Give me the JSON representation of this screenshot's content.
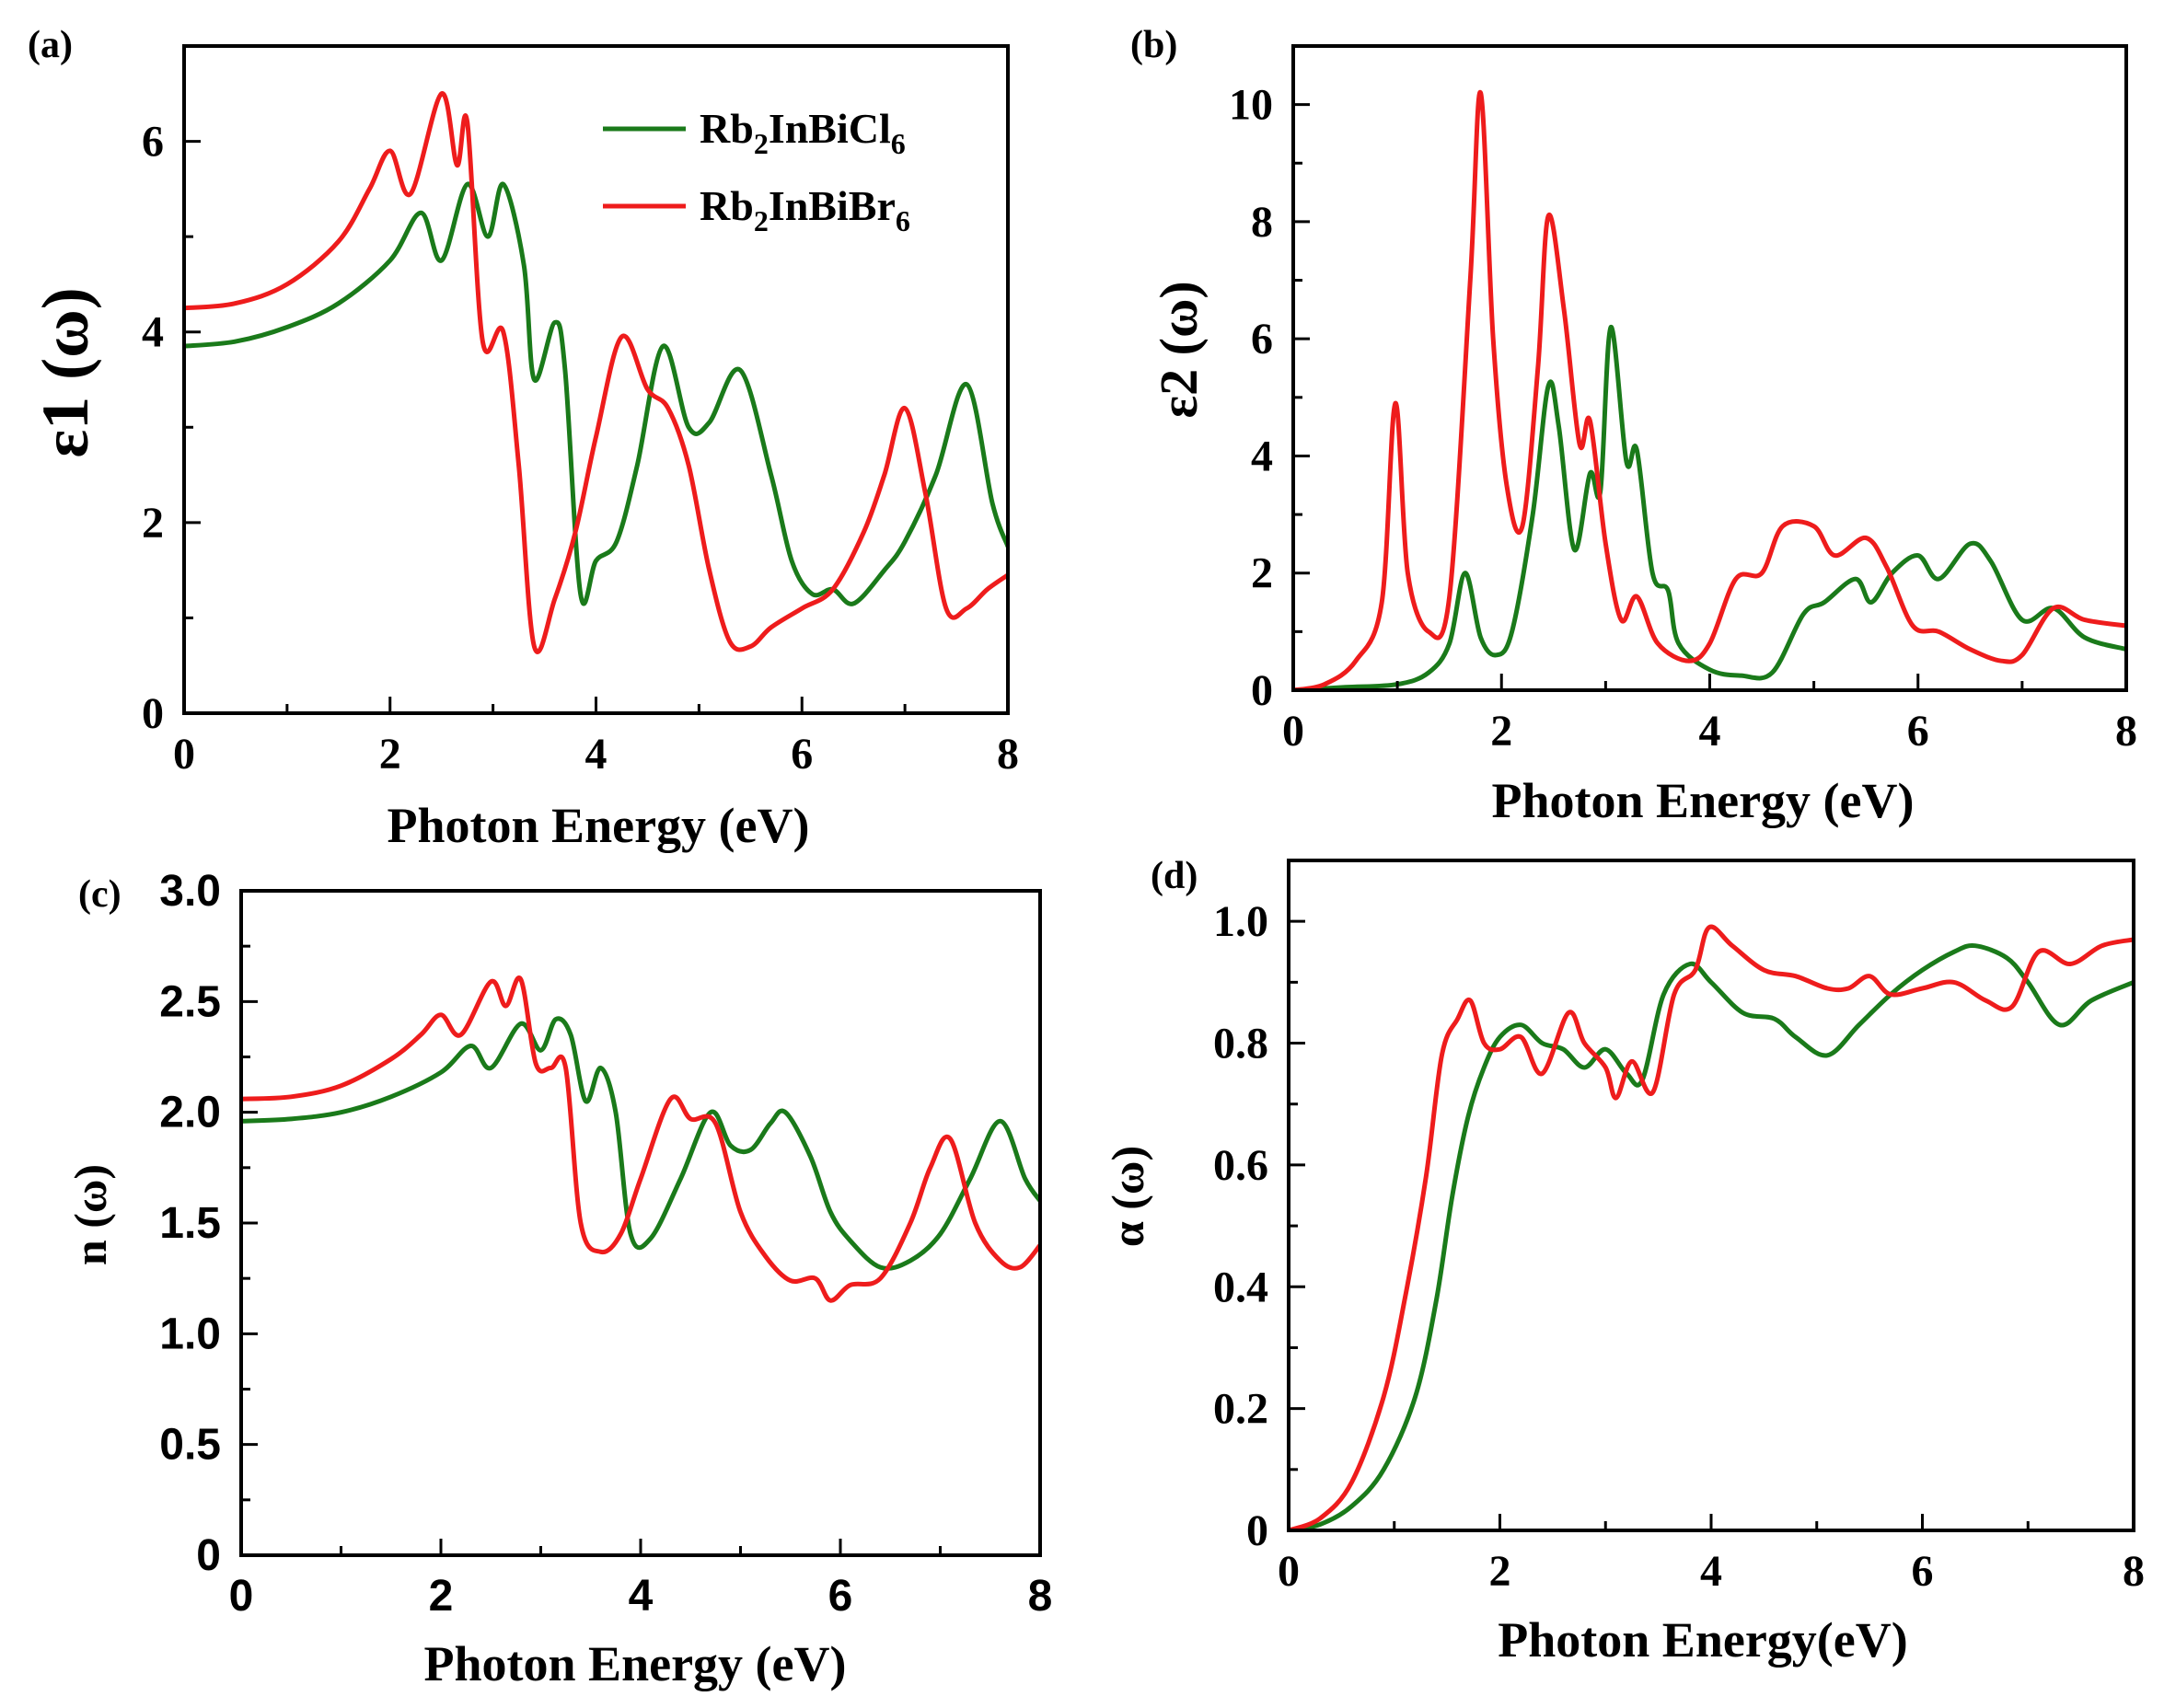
{
  "chart_data": [
    {
      "id": "a",
      "type": "line",
      "panel_label": "(a)",
      "xlabel": "Photon Energy (eV)",
      "ylabel": "ε1 (ω)",
      "xlim": [
        0,
        8
      ],
      "ylim": [
        0,
        7
      ],
      "xticks": [
        0,
        2,
        4,
        6,
        8
      ],
      "yticks": [
        0,
        2,
        4,
        6
      ],
      "legend": "top-right",
      "series": [
        {
          "name": "Rb2InBiCl6",
          "color": "#1a7a1a",
          "x": [
            0,
            0.5,
            1,
            1.5,
            2,
            2.3,
            2.5,
            2.75,
            2.95,
            3.1,
            3.3,
            3.4,
            3.6,
            3.7,
            3.85,
            4.0,
            4.2,
            4.4,
            4.65,
            4.9,
            5.1,
            5.4,
            5.7,
            5.9,
            6.1,
            6.3,
            6.5,
            6.8,
            7.0,
            7.3,
            7.6,
            7.85,
            8.0
          ],
          "y": [
            3.85,
            3.9,
            4.05,
            4.3,
            4.75,
            5.25,
            4.75,
            5.55,
            5.0,
            5.55,
            4.7,
            3.5,
            4.1,
            3.6,
            1.25,
            1.6,
            1.8,
            2.6,
            3.85,
            3.0,
            3.05,
            3.6,
            2.5,
            1.6,
            1.25,
            1.3,
            1.15,
            1.5,
            1.8,
            2.5,
            3.45,
            2.2,
            1.75
          ]
        },
        {
          "name": "Rb2InBiBr6",
          "color": "#ee1c1c",
          "x": [
            0,
            0.5,
            1,
            1.5,
            1.8,
            2.0,
            2.2,
            2.5,
            2.65,
            2.75,
            2.9,
            3.1,
            3.25,
            3.4,
            3.6,
            3.8,
            4.0,
            4.25,
            4.5,
            4.7,
            4.9,
            5.1,
            5.3,
            5.5,
            5.7,
            6.0,
            6.3,
            6.6,
            6.8,
            7.0,
            7.2,
            7.4,
            7.6,
            7.8,
            8.0
          ],
          "y": [
            4.25,
            4.3,
            4.5,
            4.95,
            5.5,
            5.9,
            5.45,
            6.5,
            5.75,
            6.2,
            3.9,
            4.0,
            2.6,
            0.7,
            1.2,
            1.9,
            2.9,
            3.95,
            3.4,
            3.2,
            2.6,
            1.5,
            0.75,
            0.7,
            0.9,
            1.1,
            1.3,
            1.9,
            2.5,
            3.2,
            2.3,
            1.1,
            1.1,
            1.3,
            1.45
          ]
        }
      ]
    },
    {
      "id": "b",
      "type": "line",
      "panel_label": "(b)",
      "xlabel": "Photon Energy (eV)",
      "ylabel": "ε2 (ω)",
      "xlim": [
        0,
        8
      ],
      "ylim": [
        0,
        11
      ],
      "xticks": [
        0,
        2,
        4,
        6,
        8
      ],
      "yticks": [
        0,
        2,
        4,
        6,
        8,
        10
      ],
      "series": [
        {
          "name": "Rb2InBiCl6",
          "color": "#1a7a1a",
          "x": [
            0,
            0.5,
            1,
            1.3,
            1.5,
            1.65,
            1.8,
            1.95,
            2.1,
            2.3,
            2.45,
            2.55,
            2.7,
            2.85,
            2.95,
            3.05,
            3.2,
            3.3,
            3.45,
            3.6,
            3.7,
            4.0,
            4.3,
            4.6,
            4.9,
            5.1,
            5.4,
            5.55,
            5.75,
            6.0,
            6.2,
            6.5,
            6.7,
            7.0,
            7.3,
            7.6,
            8.0
          ],
          "y": [
            0,
            0.05,
            0.1,
            0.3,
            0.8,
            2.0,
            0.9,
            0.6,
            1.0,
            3.0,
            5.2,
            4.5,
            2.4,
            3.7,
            3.4,
            6.2,
            3.9,
            4.1,
            2.0,
            1.7,
            0.8,
            0.35,
            0.25,
            0.3,
            1.3,
            1.5,
            1.9,
            1.5,
            2.0,
            2.3,
            1.9,
            2.5,
            2.2,
            1.2,
            1.4,
            0.9,
            0.7
          ]
        },
        {
          "name": "Rb2InBiBr6",
          "color": "#ee1c1c",
          "x": [
            0,
            0.3,
            0.6,
            0.85,
            0.98,
            1.1,
            1.3,
            1.5,
            1.7,
            1.8,
            1.92,
            2.05,
            2.2,
            2.35,
            2.45,
            2.6,
            2.75,
            2.85,
            3.0,
            3.15,
            3.3,
            3.5,
            3.8,
            4.0,
            4.25,
            4.5,
            4.7,
            5.0,
            5.2,
            5.5,
            5.7,
            5.95,
            6.2,
            6.5,
            6.8,
            7.0,
            7.3,
            7.6,
            8.0
          ],
          "y": [
            0,
            0.1,
            0.5,
            1.5,
            4.9,
            2.0,
            1.0,
            1.6,
            7.0,
            10.2,
            6.0,
            3.5,
            2.8,
            5.5,
            8.1,
            6.5,
            4.2,
            4.6,
            2.5,
            1.2,
            1.6,
            0.8,
            0.5,
            0.8,
            1.9,
            2.0,
            2.8,
            2.8,
            2.3,
            2.6,
            2.1,
            1.1,
            1.0,
            0.7,
            0.5,
            0.6,
            1.4,
            1.2,
            1.1
          ]
        }
      ]
    },
    {
      "id": "c",
      "type": "line",
      "panel_label": "(c)",
      "xlabel": "Photon Energy (eV)",
      "ylabel": "n (ω)",
      "xlim": [
        0,
        8
      ],
      "ylim": [
        0,
        3.0
      ],
      "xticks": [
        0,
        2,
        4,
        6,
        8
      ],
      "yticks": [
        0,
        0.5,
        1.0,
        1.5,
        2.0,
        2.5,
        3.0
      ],
      "ytick_labels": [
        "0",
        "0.5",
        "1.0",
        "1.5",
        "2.0",
        "2.5",
        "3.0"
      ],
      "series": [
        {
          "name": "Rb2InBiCl6",
          "color": "#1a7a1a",
          "x": [
            0,
            0.5,
            1,
            1.5,
            2,
            2.3,
            2.5,
            2.8,
            3.0,
            3.15,
            3.3,
            3.45,
            3.6,
            3.75,
            3.9,
            4.1,
            4.4,
            4.7,
            4.9,
            5.1,
            5.3,
            5.45,
            5.7,
            5.9,
            6.1,
            6.4,
            6.7,
            7.0,
            7.3,
            7.6,
            7.85,
            8.0
          ],
          "y": [
            1.96,
            1.97,
            2.0,
            2.07,
            2.18,
            2.3,
            2.2,
            2.4,
            2.28,
            2.42,
            2.35,
            2.05,
            2.2,
            2.0,
            1.45,
            1.43,
            1.7,
            2.0,
            1.85,
            1.83,
            1.95,
            2.0,
            1.8,
            1.55,
            1.42,
            1.3,
            1.33,
            1.45,
            1.7,
            1.96,
            1.7,
            1.6
          ]
        },
        {
          "name": "Rb2InBiBr6",
          "color": "#ee1c1c",
          "x": [
            0,
            0.5,
            1,
            1.5,
            1.8,
            2.0,
            2.2,
            2.5,
            2.65,
            2.8,
            2.95,
            3.1,
            3.25,
            3.4,
            3.6,
            3.8,
            4.0,
            4.3,
            4.5,
            4.75,
            5.0,
            5.25,
            5.5,
            5.75,
            5.9,
            6.1,
            6.4,
            6.7,
            6.9,
            7.1,
            7.35,
            7.6,
            7.8,
            8.0
          ],
          "y": [
            2.06,
            2.07,
            2.12,
            2.24,
            2.35,
            2.44,
            2.35,
            2.59,
            2.48,
            2.6,
            2.22,
            2.2,
            2.2,
            1.5,
            1.37,
            1.45,
            1.7,
            2.06,
            1.97,
            1.95,
            1.55,
            1.35,
            1.24,
            1.25,
            1.15,
            1.22,
            1.25,
            1.5,
            1.75,
            1.88,
            1.5,
            1.33,
            1.3,
            1.4
          ]
        }
      ]
    },
    {
      "id": "d",
      "type": "line",
      "panel_label": "(d)",
      "xlabel": "Photon Energy(eV)",
      "ylabel": "α (ω)",
      "xlim": [
        0,
        8
      ],
      "ylim": [
        0,
        1.1
      ],
      "xticks": [
        0,
        2,
        4,
        6,
        8
      ],
      "yticks": [
        0,
        0.2,
        0.4,
        0.6,
        0.8,
        1.0
      ],
      "ytick_labels": [
        "0",
        "0.2",
        "0.4",
        "0.6",
        "0.8",
        "1.0"
      ],
      "series": [
        {
          "name": "Rb2InBiCl6",
          "color": "#1a7a1a",
          "x": [
            0,
            0.3,
            0.6,
            0.9,
            1.2,
            1.4,
            1.55,
            1.7,
            1.85,
            2.0,
            2.2,
            2.4,
            2.6,
            2.8,
            3.0,
            3.2,
            3.35,
            3.55,
            3.8,
            4.0,
            4.3,
            4.6,
            4.8,
            5.1,
            5.4,
            5.7,
            6.0,
            6.3,
            6.5,
            6.8,
            7.0,
            7.3,
            7.6,
            8.0
          ],
          "y": [
            0,
            0.01,
            0.04,
            0.1,
            0.22,
            0.38,
            0.55,
            0.68,
            0.76,
            0.81,
            0.83,
            0.8,
            0.79,
            0.76,
            0.79,
            0.75,
            0.74,
            0.88,
            0.93,
            0.9,
            0.85,
            0.84,
            0.81,
            0.78,
            0.83,
            0.88,
            0.92,
            0.95,
            0.96,
            0.94,
            0.9,
            0.83,
            0.87,
            0.9
          ]
        },
        {
          "name": "Rb2InBiBr6",
          "color": "#ee1c1c",
          "x": [
            0,
            0.3,
            0.6,
            0.9,
            1.1,
            1.3,
            1.45,
            1.6,
            1.72,
            1.85,
            2.0,
            2.2,
            2.4,
            2.65,
            2.8,
            3.0,
            3.1,
            3.25,
            3.45,
            3.65,
            3.85,
            3.98,
            4.2,
            4.5,
            4.8,
            5.1,
            5.3,
            5.5,
            5.7,
            6.0,
            6.3,
            6.6,
            6.85,
            7.1,
            7.4,
            7.7,
            8.0
          ],
          "y": [
            0,
            0.02,
            0.08,
            0.22,
            0.38,
            0.58,
            0.78,
            0.84,
            0.87,
            0.8,
            0.79,
            0.81,
            0.75,
            0.85,
            0.8,
            0.76,
            0.71,
            0.77,
            0.72,
            0.88,
            0.92,
            0.99,
            0.96,
            0.92,
            0.91,
            0.89,
            0.89,
            0.91,
            0.88,
            0.89,
            0.9,
            0.87,
            0.86,
            0.95,
            0.93,
            0.96,
            0.97
          ]
        }
      ]
    }
  ],
  "legend": {
    "entries": [
      {
        "label": "Rb",
        "sub1": "2",
        "mid": "InBiCl",
        "sub2": "6",
        "color": "#1a7a1a"
      },
      {
        "label": "Rb",
        "sub1": "2",
        "mid": "InBiBr",
        "sub2": "6",
        "color": "#ee1c1c"
      }
    ]
  }
}
